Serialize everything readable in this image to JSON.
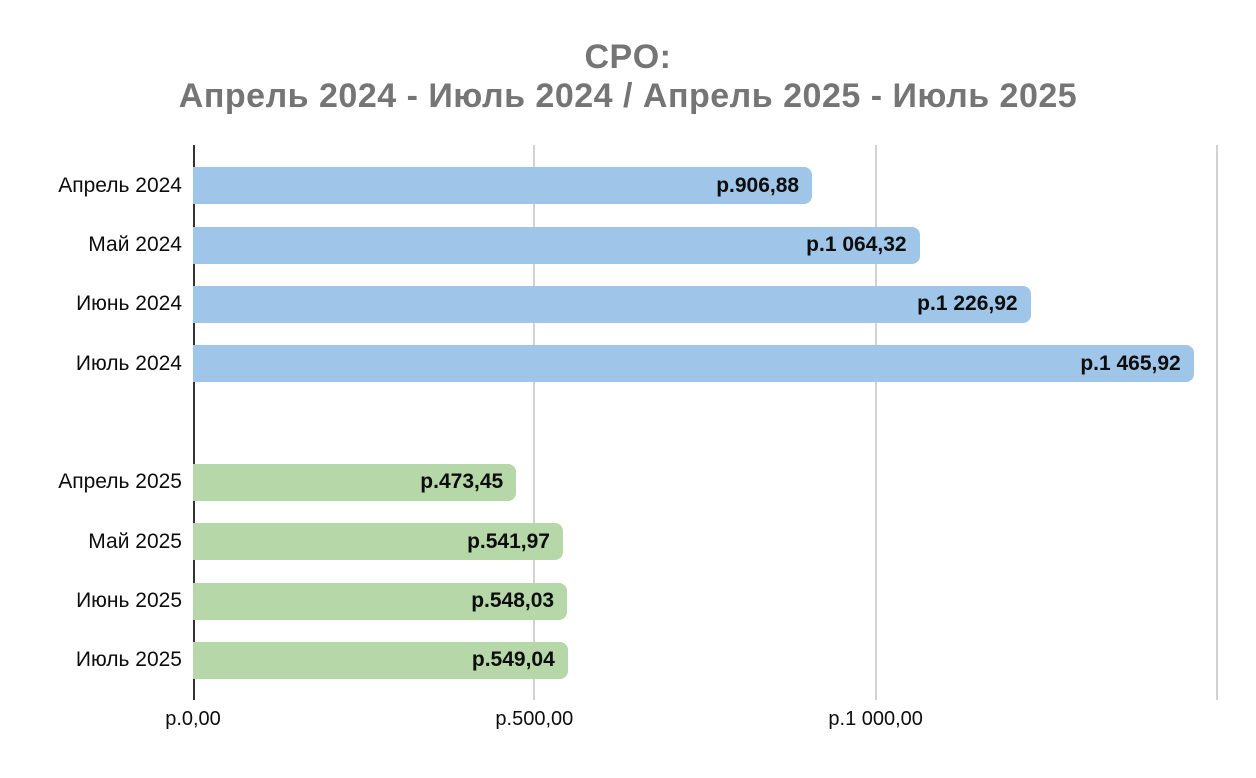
{
  "chart_data": {
    "type": "bar",
    "orientation": "horizontal",
    "title_lines": [
      "CPO:",
      "Апрель 2024 - Июль 2024 / Апрель 2025 - Июль 2025"
    ],
    "xlabel": "",
    "ylabel": "",
    "xlim": [
      0,
      1500
    ],
    "grid": true,
    "legend_position": "none",
    "x_ticks": [
      {
        "value": 0,
        "label": "р.0,00"
      },
      {
        "value": 500,
        "label": "р.500,00"
      },
      {
        "value": 1000,
        "label": "р.1 000,00"
      },
      {
        "value": 1500,
        "label": ""
      }
    ],
    "rows": [
      {
        "label": "Апрель 2024",
        "value": 906.88,
        "value_label": "р.906,88",
        "group": "2024",
        "color": "#9fc5e8"
      },
      {
        "label": "Май 2024",
        "value": 1064.32,
        "value_label": "р.1 064,32",
        "group": "2024",
        "color": "#9fc5e8"
      },
      {
        "label": "Июнь 2024",
        "value": 1226.92,
        "value_label": "р.1 226,92",
        "group": "2024",
        "color": "#9fc5e8"
      },
      {
        "label": "Июль 2024",
        "value": 1465.92,
        "value_label": "р.1 465,92",
        "group": "2024",
        "color": "#9fc5e8"
      },
      {
        "label": "",
        "value": null,
        "value_label": "",
        "group": "",
        "color": null
      },
      {
        "label": "Апрель 2025",
        "value": 473.45,
        "value_label": "р.473,45",
        "group": "2025",
        "color": "#b6d7a8"
      },
      {
        "label": "Май 2025",
        "value": 541.97,
        "value_label": "р.541,97",
        "group": "2025",
        "color": "#b6d7a8"
      },
      {
        "label": "Июнь 2025",
        "value": 548.03,
        "value_label": "р.548,03",
        "group": "2025",
        "color": "#b6d7a8"
      },
      {
        "label": "Июль 2025",
        "value": 549.04,
        "value_label": "р.549,04",
        "group": "2025",
        "color": "#b6d7a8"
      }
    ],
    "colors": {
      "series_2024": "#9fc5e8",
      "series_2025": "#b6d7a8",
      "title": "#757575",
      "axis_line": "#333333",
      "gridline": "#d2d2d2",
      "text": "#0d0d0d"
    }
  }
}
